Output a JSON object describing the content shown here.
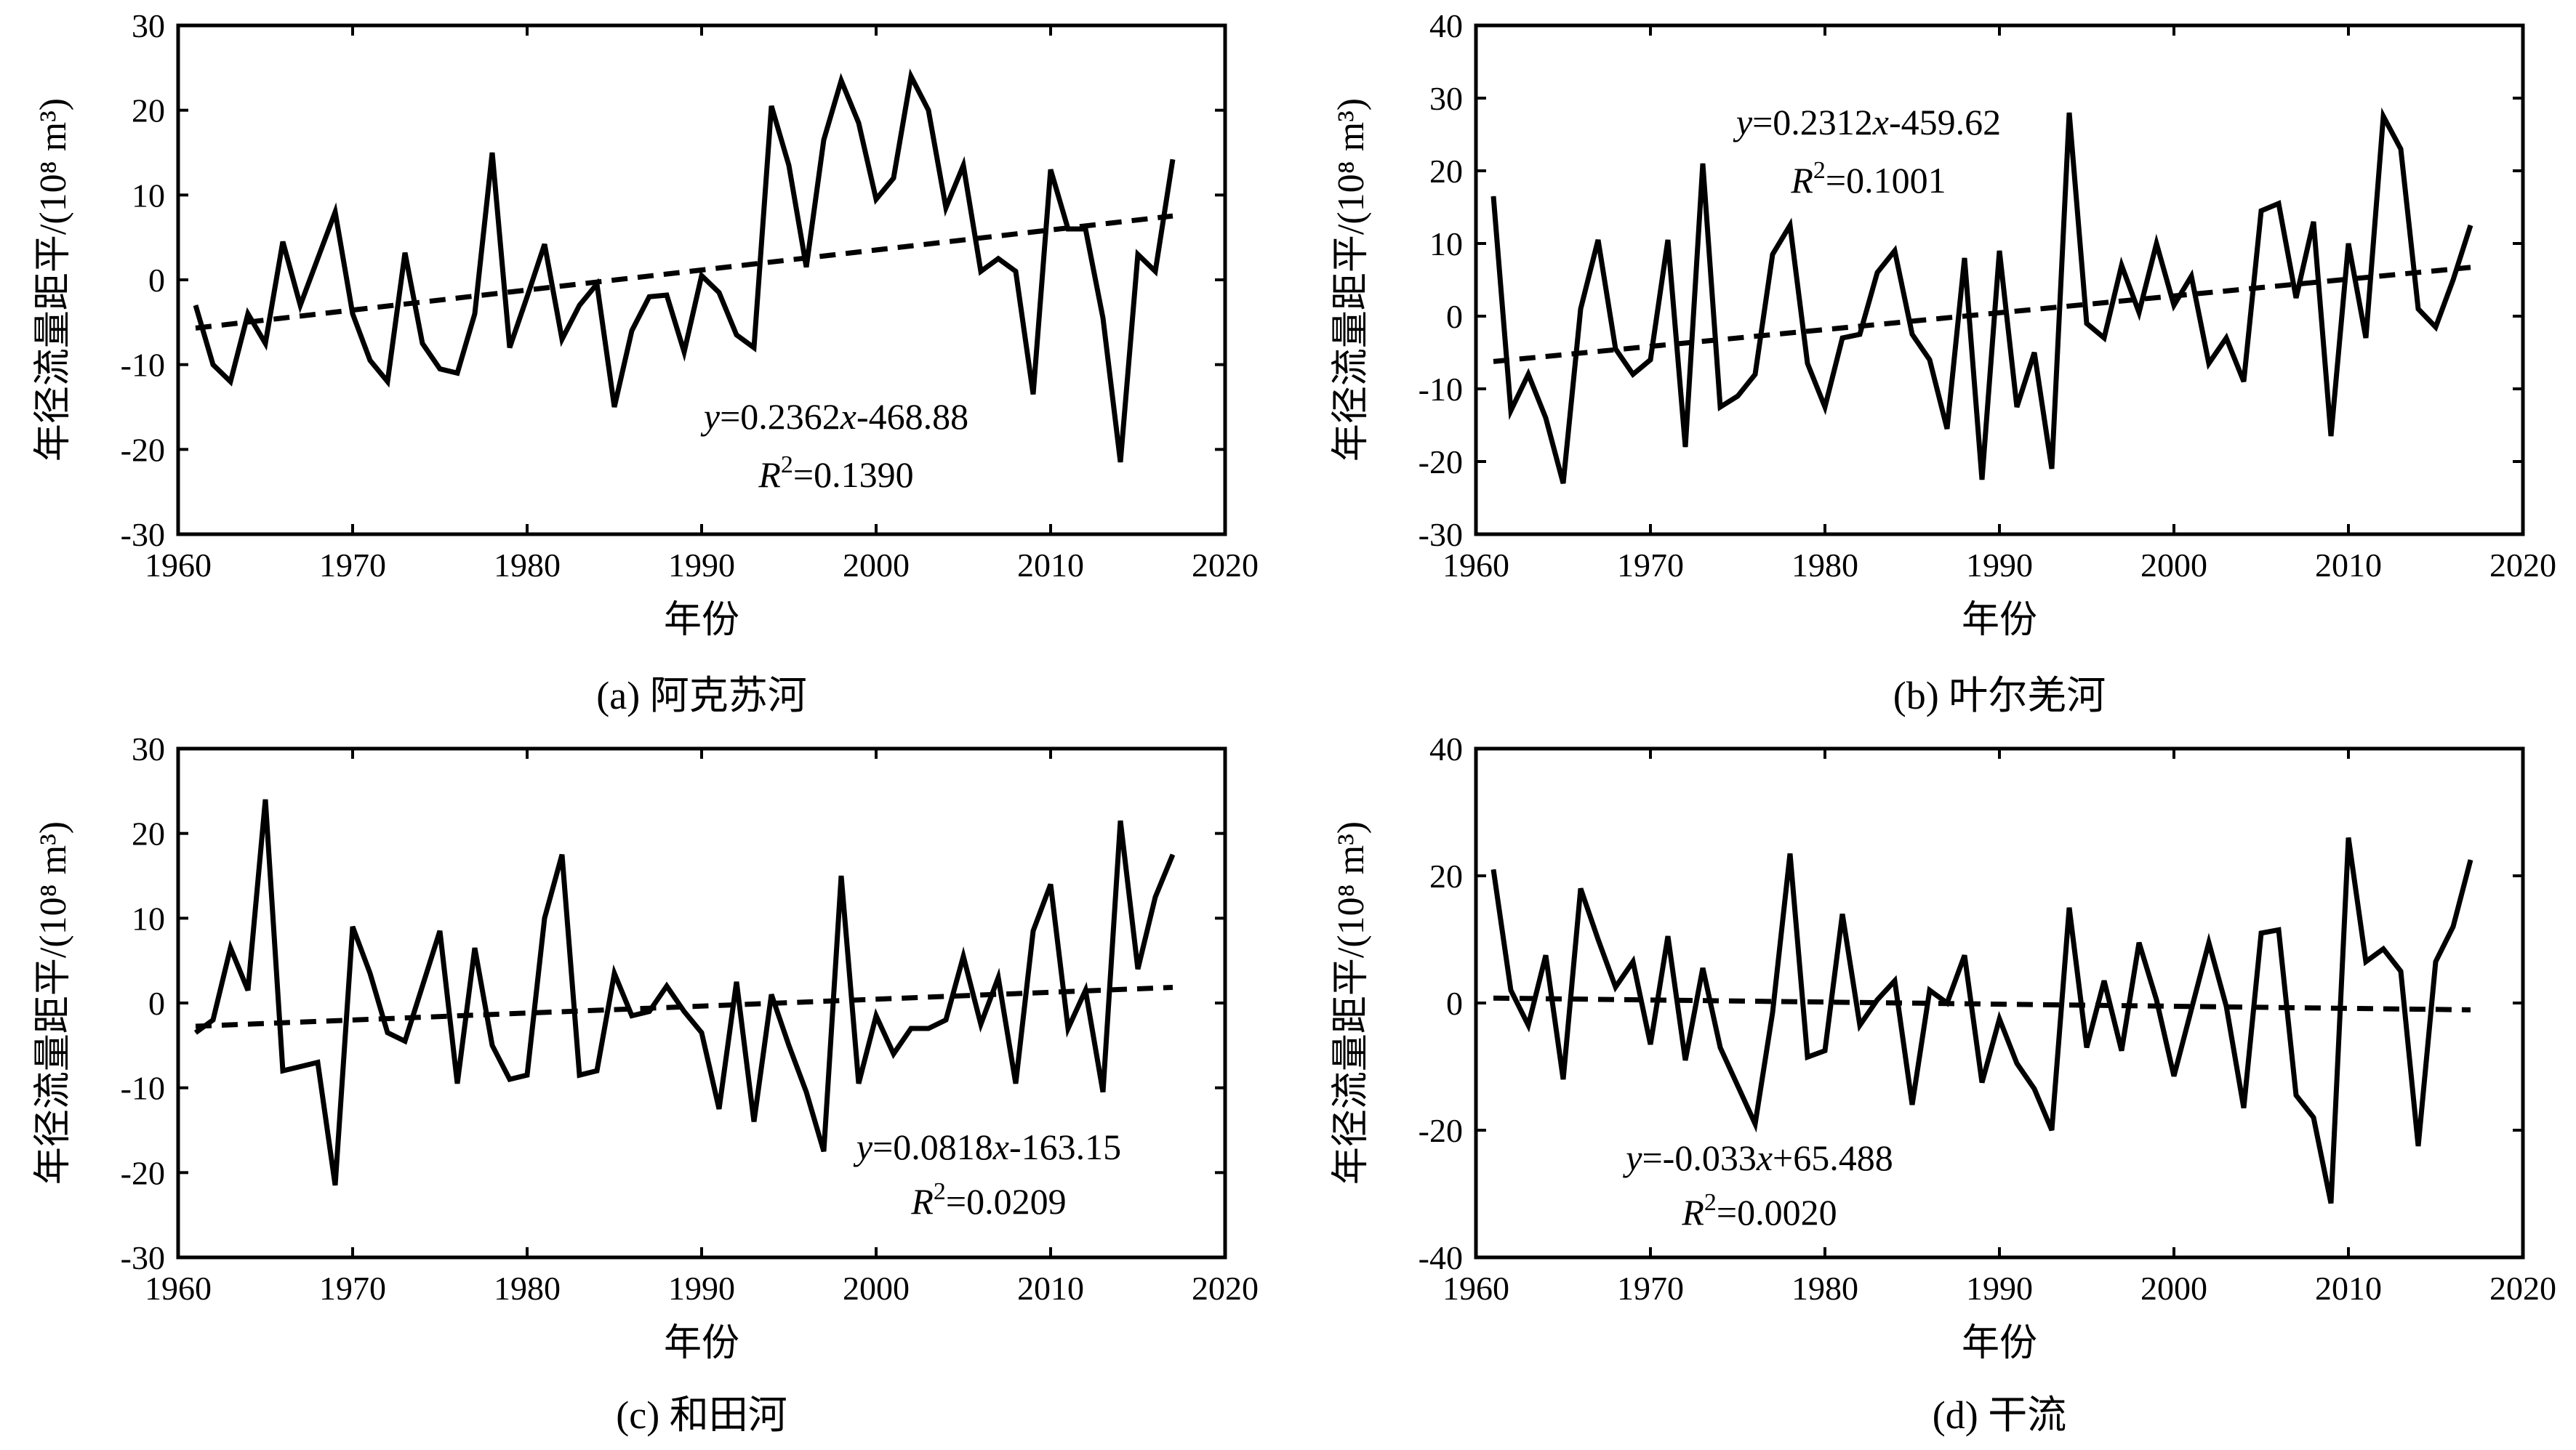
{
  "chart_data": [
    {
      "id": "a",
      "type": "line",
      "caption": "(a) 阿克苏河",
      "xlabel": "年份",
      "ylabel": "年径流量距平/(10⁸ m³)",
      "xlim": [
        1960,
        2020
      ],
      "ylim": [
        -30,
        30
      ],
      "xticks": [
        1960,
        1970,
        1980,
        1990,
        2000,
        2010,
        2020
      ],
      "yticks": [
        -30,
        -20,
        -10,
        0,
        10,
        20,
        30
      ],
      "grid": false,
      "equation": {
        "y": "y",
        "rhs_a": "=0.2362",
        "x": "x",
        "rhs_b": "-468.88",
        "r": "R",
        "sup": "2",
        "r_val": "=0.1390"
      },
      "trend": {
        "slope": 0.2362,
        "intercept": -468.88,
        "x_range": [
          1961,
          2017
        ]
      },
      "x": [
        1961,
        1962,
        1963,
        1964,
        1965,
        1966,
        1967,
        1968,
        1969,
        1970,
        1971,
        1972,
        1973,
        1974,
        1975,
        1976,
        1977,
        1978,
        1979,
        1980,
        1981,
        1982,
        1983,
        1984,
        1985,
        1986,
        1987,
        1988,
        1989,
        1990,
        1991,
        1992,
        1993,
        1994,
        1995,
        1996,
        1997,
        1998,
        1999,
        2000,
        2001,
        2002,
        2003,
        2004,
        2005,
        2006,
        2007,
        2008,
        2009,
        2010,
        2011,
        2012,
        2013,
        2014,
        2015,
        2016,
        2017
      ],
      "values": [
        -3,
        -10,
        -12,
        -4,
        -7.5,
        4.5,
        -3,
        2.5,
        8,
        -4,
        -9.5,
        -12,
        3.2,
        -7.5,
        -10.5,
        -11,
        -4,
        15,
        -8,
        -2,
        4.2,
        -7,
        -3,
        -0.5,
        -15,
        -6,
        -2,
        -1.8,
        -8.5,
        0.5,
        -1.5,
        -6.5,
        -8,
        20.5,
        13.5,
        1.5,
        16.5,
        23.5,
        18.5,
        9.5,
        12,
        24,
        20,
        8.5,
        13.5,
        1,
        2.5,
        1,
        -13.5,
        13,
        6,
        6,
        -4.5,
        -21.5,
        3,
        1,
        14.2
      ]
    },
    {
      "id": "b",
      "type": "line",
      "caption": "(b) 叶尔羌河",
      "xlabel": "年份",
      "ylabel": "年径流量距平/(10⁸ m³)",
      "xlim": [
        1960,
        2020
      ],
      "ylim": [
        -30,
        40
      ],
      "xticks": [
        1960,
        1970,
        1980,
        1990,
        2000,
        2010,
        2020
      ],
      "yticks": [
        -30,
        -20,
        -10,
        0,
        10,
        20,
        30,
        40
      ],
      "grid": false,
      "equation": {
        "y": "y",
        "rhs_a": "=0.2312",
        "x": "x",
        "rhs_b": "-459.62",
        "r": "R",
        "sup": "2",
        "r_val": "=0.1001"
      },
      "trend": {
        "slope": 0.2312,
        "intercept": -459.62,
        "x_range": [
          1961,
          2017
        ]
      },
      "x": [
        1961,
        1962,
        1963,
        1964,
        1965,
        1966,
        1967,
        1968,
        1969,
        1970,
        1971,
        1972,
        1973,
        1974,
        1975,
        1976,
        1977,
        1978,
        1979,
        1980,
        1981,
        1982,
        1983,
        1984,
        1985,
        1986,
        1987,
        1988,
        1989,
        1990,
        1991,
        1992,
        1993,
        1994,
        1995,
        1996,
        1997,
        1998,
        1999,
        2000,
        2001,
        2002,
        2003,
        2004,
        2005,
        2006,
        2007,
        2008,
        2009,
        2010,
        2011,
        2012,
        2013,
        2014,
        2015,
        2016,
        2017
      ],
      "values": [
        16.5,
        -13,
        -8,
        -14,
        -23,
        1,
        10.5,
        -4.5,
        -8,
        -6,
        10.5,
        -18,
        21,
        -12.5,
        -11,
        -8,
        8.5,
        12.5,
        -6.5,
        -12.5,
        -3,
        -2.5,
        6,
        9,
        -2.5,
        -6,
        -15.5,
        8,
        -22.5,
        9,
        -12.5,
        -5,
        -21,
        28,
        -1,
        -3,
        7,
        0.5,
        10,
        1.5,
        5.5,
        -6.5,
        -3,
        -9,
        14.5,
        15.5,
        2.5,
        13,
        -16.5,
        10,
        -3,
        27.5,
        23,
        1,
        -1.5,
        5,
        12.5
      ]
    },
    {
      "id": "c",
      "type": "line",
      "caption": "(c) 和田河",
      "xlabel": "年份",
      "ylabel": "年径流量距平/(10⁸ m³)",
      "xlim": [
        1960,
        2020
      ],
      "ylim": [
        -30,
        30
      ],
      "xticks": [
        1960,
        1970,
        1980,
        1990,
        2000,
        2010,
        2020
      ],
      "yticks": [
        -30,
        -20,
        -10,
        0,
        10,
        20,
        30
      ],
      "grid": false,
      "equation": {
        "y": "y",
        "rhs_a": "=0.0818",
        "x": "x",
        "rhs_b": "-163.15",
        "r": "R",
        "sup": "2",
        "r_val": "=0.0209"
      },
      "trend": {
        "slope": 0.0818,
        "intercept": -163.15,
        "x_range": [
          1961,
          2017
        ]
      },
      "x": [
        1961,
        1962,
        1963,
        1964,
        1965,
        1966,
        1967,
        1968,
        1969,
        1970,
        1971,
        1972,
        1973,
        1974,
        1975,
        1976,
        1977,
        1978,
        1979,
        1980,
        1981,
        1982,
        1983,
        1984,
        1985,
        1986,
        1987,
        1988,
        1989,
        1990,
        1991,
        1992,
        1993,
        1994,
        1995,
        1996,
        1997,
        1998,
        1999,
        2000,
        2001,
        2002,
        2003,
        2004,
        2005,
        2006,
        2007,
        2008,
        2009,
        2010,
        2011,
        2012,
        2013,
        2014,
        2015,
        2016,
        2017
      ],
      "values": [
        -3.5,
        -2,
        6.5,
        1.5,
        24,
        -8,
        -7.5,
        -7,
        -21.5,
        9,
        3.5,
        -3.5,
        -4.5,
        2,
        8.5,
        -9.5,
        6.5,
        -5,
        -9,
        -8.5,
        10,
        17.5,
        -8.5,
        -8,
        3.5,
        -1.5,
        -1,
        2,
        -1,
        -3.5,
        -12.5,
        2.5,
        -14,
        1,
        -5,
        -10.5,
        -17.5,
        15,
        -9.5,
        -1.5,
        -6,
        -3,
        -3,
        -2,
        5.5,
        -2.5,
        3,
        -9.5,
        8.5,
        14,
        -3,
        1.5,
        -10.5,
        21.5,
        4,
        12.5,
        17.5
      ]
    },
    {
      "id": "d",
      "type": "line",
      "caption": "(d) 干流",
      "xlabel": "年份",
      "ylabel": "年径流量距平/(10⁸ m³)",
      "xlim": [
        1960,
        2020
      ],
      "ylim": [
        -40,
        40
      ],
      "xticks": [
        1960,
        1970,
        1980,
        1990,
        2000,
        2010,
        2020
      ],
      "yticks": [
        -40,
        -20,
        0,
        20,
        40
      ],
      "grid": false,
      "equation": {
        "y": "y",
        "rhs_a": "=-0.033",
        "x": "x",
        "rhs_b": "+65.488",
        "r": "R",
        "sup": "2",
        "r_val": "=0.0020"
      },
      "trend": {
        "slope": -0.033,
        "intercept": 65.488,
        "x_range": [
          1961,
          2017
        ]
      },
      "x": [
        1961,
        1962,
        1963,
        1964,
        1965,
        1966,
        1967,
        1968,
        1969,
        1970,
        1971,
        1972,
        1973,
        1974,
        1975,
        1976,
        1977,
        1978,
        1979,
        1980,
        1981,
        1982,
        1983,
        1984,
        1985,
        1986,
        1987,
        1988,
        1989,
        1990,
        1991,
        1992,
        1993,
        1994,
        1995,
        1996,
        1997,
        1998,
        1999,
        2000,
        2001,
        2002,
        2003,
        2004,
        2005,
        2006,
        2007,
        2008,
        2009,
        2010,
        2011,
        2012,
        2013,
        2014,
        2015,
        2016,
        2017
      ],
      "values": [
        21,
        2,
        -3.5,
        7.5,
        -12,
        18,
        10,
        2.5,
        6.5,
        -6.5,
        10.5,
        -9,
        5.5,
        -7,
        -13,
        -19,
        -1.5,
        23.5,
        -8.5,
        -7.5,
        14,
        -3.5,
        0.5,
        3.5,
        -16,
        2,
        0,
        7.5,
        -12.5,
        -2.5,
        -9.5,
        -13.5,
        -20,
        15,
        -7,
        3.5,
        -7.5,
        9.5,
        0.5,
        -11.5,
        -1,
        9.5,
        -0.5,
        -16.5,
        11,
        11.5,
        -14.5,
        -18,
        -31.5,
        26,
        6.5,
        8.5,
        5,
        -22.5,
        6.5,
        12,
        22.5
      ]
    }
  ]
}
